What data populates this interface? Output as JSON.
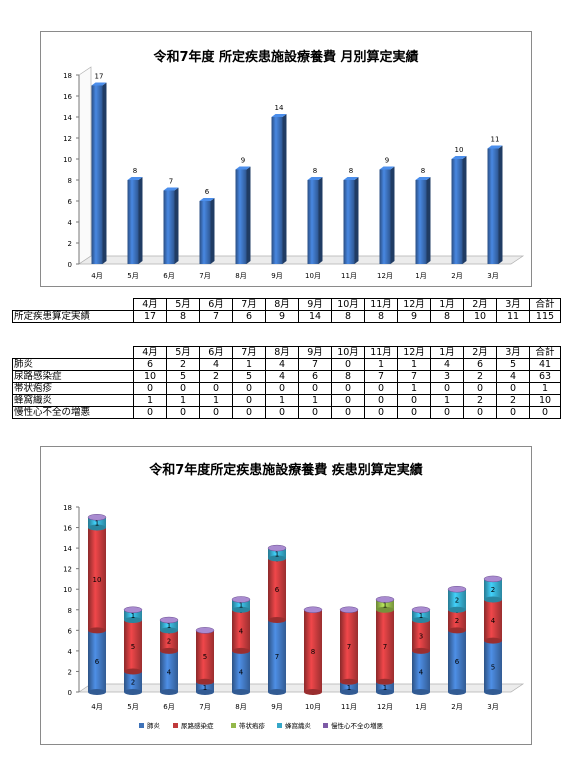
{
  "chart_data": [
    {
      "type": "bar",
      "title": "令和7年度 所定疾患施設療養費 月別算定実績",
      "categories": [
        "4月",
        "5月",
        "6月",
        "7月",
        "8月",
        "9月",
        "10月",
        "11月",
        "12月",
        "1月",
        "2月",
        "3月"
      ],
      "values": [
        17,
        8,
        7,
        6,
        9,
        14,
        8,
        8,
        9,
        8,
        10,
        11
      ],
      "ylim": [
        0,
        18
      ],
      "yticks": [
        0,
        2,
        4,
        6,
        8,
        10,
        12,
        14,
        16,
        18
      ],
      "grid": false,
      "color": "#3a6db5"
    },
    {
      "type": "bar",
      "stacked": true,
      "title": "令和7年度所定疾患施設療養費 疾患別算定実績",
      "categories": [
        "4月",
        "5月",
        "6月",
        "7月",
        "8月",
        "9月",
        "10月",
        "11月",
        "12月",
        "1月",
        "2月",
        "3月"
      ],
      "ylim": [
        0,
        18
      ],
      "yticks": [
        0,
        2,
        4,
        6,
        8,
        10,
        12,
        14,
        16,
        18
      ],
      "legend_position": "bottom",
      "series": [
        {
          "name": "肺炎",
          "color": "#3e72b8",
          "values": [
            6,
            2,
            4,
            1,
            4,
            7,
            0,
            1,
            1,
            4,
            6,
            5
          ]
        },
        {
          "name": "尿路感染症",
          "color": "#c0393b",
          "values": [
            10,
            5,
            2,
            5,
            4,
            6,
            8,
            7,
            7,
            3,
            2,
            4
          ]
        },
        {
          "name": "帯状疱疹",
          "color": "#93b84a",
          "values": [
            0,
            0,
            0,
            0,
            0,
            0,
            0,
            0,
            1,
            0,
            0,
            0
          ]
        },
        {
          "name": "蜂窩織炎",
          "color": "#35a7c8",
          "values": [
            1,
            1,
            1,
            0,
            1,
            1,
            0,
            0,
            0,
            1,
            2,
            2
          ]
        },
        {
          "name": "慢性心不全の増悪",
          "color": "#7d5aa6",
          "values": [
            0,
            0,
            0,
            0,
            0,
            0,
            0,
            0,
            0,
            0,
            0,
            0
          ]
        }
      ]
    }
  ],
  "table1": {
    "headers": [
      "4月",
      "5月",
      "6月",
      "7月",
      "8月",
      "9月",
      "10月",
      "11月",
      "12月",
      "1月",
      "2月",
      "3月",
      "合計"
    ],
    "rows": [
      {
        "label": "所定疾患算定実績",
        "cells": [
          "17",
          "8",
          "7",
          "6",
          "9",
          "14",
          "8",
          "8",
          "9",
          "8",
          "10",
          "11",
          "115"
        ]
      }
    ]
  },
  "table2": {
    "headers": [
      "4月",
      "5月",
      "6月",
      "7月",
      "8月",
      "9月",
      "10月",
      "11月",
      "12月",
      "1月",
      "2月",
      "3月",
      "合計"
    ],
    "rows": [
      {
        "label": "肺炎",
        "cells": [
          "6",
          "2",
          "4",
          "1",
          "4",
          "7",
          "0",
          "1",
          "1",
          "4",
          "6",
          "5",
          "41"
        ]
      },
      {
        "label": "尿路感染症",
        "cells": [
          "10",
          "5",
          "2",
          "5",
          "4",
          "6",
          "8",
          "7",
          "7",
          "3",
          "2",
          "4",
          "63"
        ]
      },
      {
        "label": "帯状疱疹",
        "cells": [
          "0",
          "0",
          "0",
          "0",
          "0",
          "0",
          "0",
          "0",
          "1",
          "0",
          "0",
          "0",
          "1"
        ]
      },
      {
        "label": "蜂窩織炎",
        "cells": [
          "1",
          "1",
          "1",
          "0",
          "1",
          "1",
          "0",
          "0",
          "0",
          "1",
          "2",
          "2",
          "10"
        ]
      },
      {
        "label": "慢性心不全の増悪",
        "cells": [
          "0",
          "0",
          "0",
          "0",
          "0",
          "0",
          "0",
          "0",
          "0",
          "0",
          "0",
          "0",
          "0"
        ]
      }
    ]
  }
}
